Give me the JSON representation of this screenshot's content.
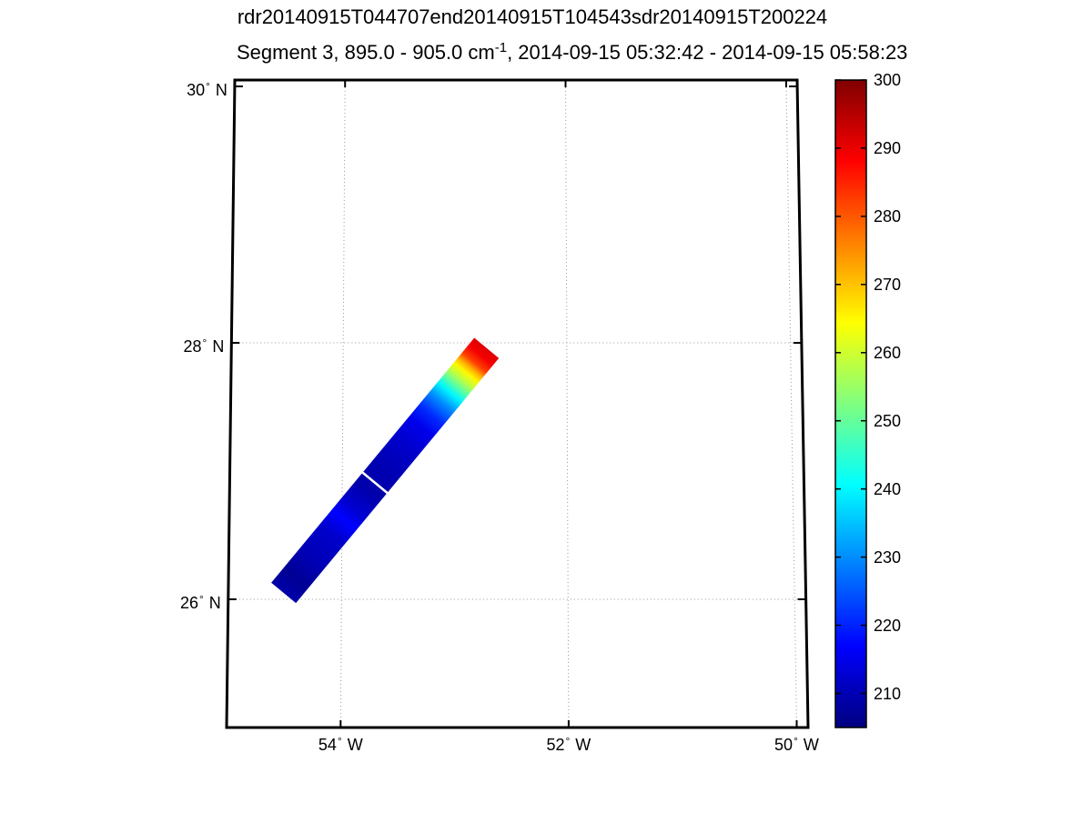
{
  "title_line1": "rdr20140915T044707end20140915T104543sdr20140915T200224",
  "title_line2": {
    "prefix": "Segment 3, 895.0 - 905.0 cm",
    "superscript": "-1",
    "suffix": ", 2014-09-15 05:32:42 - 2014-09-15 05:58:23"
  },
  "chart_data": {
    "type": "heatmap",
    "x_axis": {
      "ticks": [
        54,
        52,
        50
      ],
      "suffix": "W"
    },
    "y_axis": {
      "ticks": [
        30,
        28,
        26
      ],
      "suffix": "N"
    },
    "lon_range": [
      -55.0,
      -49.9
    ],
    "lat_range": [
      25.0,
      30.05
    ],
    "grid": {
      "style": "dotted",
      "color": "#999999"
    },
    "colorbar": {
      "colormap": "jet",
      "min": 205,
      "max": 300,
      "ticks": [
        300,
        290,
        280,
        270,
        260,
        250,
        240,
        230,
        220,
        210
      ]
    },
    "swath": {
      "track_start": {
        "lon": -54.5,
        "lat": 26.05
      },
      "track_end": {
        "lon": -52.72,
        "lat": 27.96
      },
      "width_deg": 0.28,
      "gap_positions": [
        0.45
      ],
      "brightness_profile": [
        {
          "t": 0.0,
          "value": 209
        },
        {
          "t": 0.06,
          "value": 207
        },
        {
          "t": 0.14,
          "value": 210
        },
        {
          "t": 0.24,
          "value": 212
        },
        {
          "t": 0.3,
          "value": 217
        },
        {
          "t": 0.34,
          "value": 213
        },
        {
          "t": 0.42,
          "value": 209
        },
        {
          "t": 0.52,
          "value": 210
        },
        {
          "t": 0.6,
          "value": 212
        },
        {
          "t": 0.68,
          "value": 215
        },
        {
          "t": 0.73,
          "value": 221
        },
        {
          "t": 0.78,
          "value": 230
        },
        {
          "t": 0.82,
          "value": 240
        },
        {
          "t": 0.85,
          "value": 250
        },
        {
          "t": 0.875,
          "value": 258
        },
        {
          "t": 0.9,
          "value": 265
        },
        {
          "t": 0.92,
          "value": 272
        },
        {
          "t": 0.94,
          "value": 282
        },
        {
          "t": 0.97,
          "value": 289
        },
        {
          "t": 1.0,
          "value": 291
        }
      ]
    }
  }
}
